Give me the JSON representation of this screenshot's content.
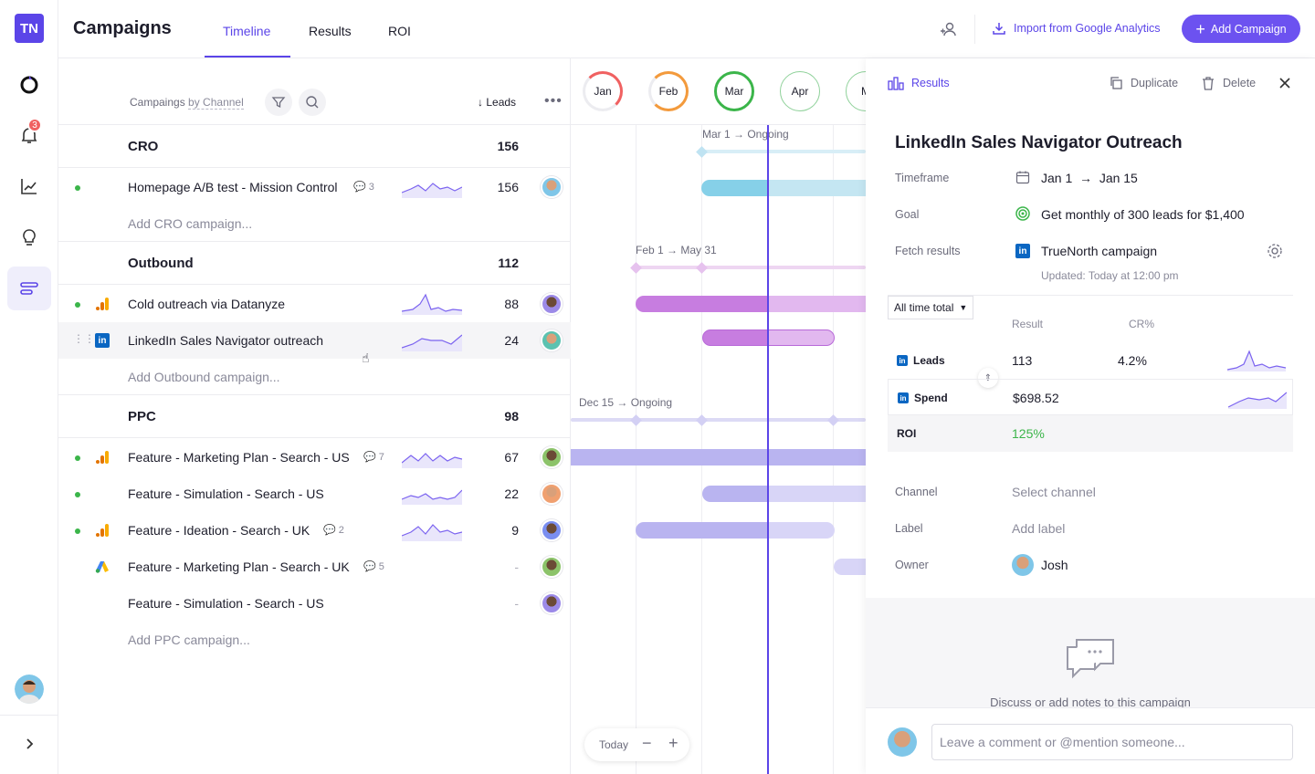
{
  "app": {
    "logo": "TN",
    "notifications_count": "3"
  },
  "header": {
    "title": "Campaigns",
    "tabs": [
      {
        "label": "Timeline"
      },
      {
        "label": "Results"
      },
      {
        "label": "ROI"
      }
    ],
    "import_label": "Import from Google Analytics",
    "add_label": "Add Campaign"
  },
  "toolbar": {
    "campaigns_label": "Campaings",
    "by_label": "by Channel",
    "sort_label": "Leads"
  },
  "groups": [
    {
      "title": "CRO",
      "total": "156",
      "rows": [
        {
          "name": "Homepage A/B test - Mission Control",
          "comments": "3",
          "value": "156",
          "channel": "none"
        }
      ],
      "add": "Add CRO campaign..."
    },
    {
      "title": "Outbound",
      "total": "112",
      "rows": [
        {
          "name": "Cold outreach via Datanyze",
          "comments": "",
          "value": "88",
          "channel": "analytics"
        },
        {
          "name": "LinkedIn Sales Navigator outreach",
          "comments": "",
          "value": "24",
          "channel": "linkedin"
        }
      ],
      "add": "Add Outbound campaign..."
    },
    {
      "title": "PPC",
      "total": "98",
      "rows": [
        {
          "name": "Feature - Marketing Plan - Search - US",
          "comments": "7",
          "value": "67",
          "channel": "analytics"
        },
        {
          "name": "Feature - Simulation - Search - US",
          "comments": "",
          "value": "22",
          "channel": "none"
        },
        {
          "name": "Feature - Ideation - Search - UK",
          "comments": "2",
          "value": "9",
          "channel": "analytics"
        },
        {
          "name": "Feature - Marketing Plan - Search - UK",
          "comments": "5",
          "value": "-",
          "channel": "google-ads"
        },
        {
          "name": "Feature - Simulation - Search - US",
          "comments": "",
          "value": "-",
          "channel": "none"
        }
      ],
      "add": "Add PPC campaign..."
    }
  ],
  "timeline": {
    "months": [
      "Jan",
      "Feb",
      "Mar",
      "Apr",
      "M"
    ],
    "labels": {
      "cro": "Mar 1 → Ongoing",
      "outbound": "Feb 1 → May 31",
      "ppc": "Dec 15 → Ongoing"
    },
    "zoom_label": "Today"
  },
  "panel": {
    "results_label": "Results",
    "duplicate_label": "Duplicate",
    "delete_label": "Delete",
    "title": "LinkedIn Sales Navigator Outreach",
    "timeframe_label": "Timeframe",
    "timeframe_start": "Jan 1",
    "timeframe_end": "Jan 15",
    "goal_label": "Goal",
    "goal_value": "Get monthly of 300 leads for $1,400",
    "fetch_label": "Fetch results",
    "fetch_value": "TrueNorth campaign",
    "updated": "Updated: Today at 12:00 pm",
    "range_select": "All time total",
    "col_result": "Result",
    "col_cr": "CR%",
    "metrics": [
      {
        "label": "Leads",
        "result": "113",
        "cr": "4.2%"
      },
      {
        "label": "Spend",
        "result": "$698.52",
        "cr": ""
      },
      {
        "label": "ROI",
        "result": "125%",
        "cr": ""
      }
    ],
    "channel_label": "Channel",
    "channel_value": "Select channel",
    "label_label": "Label",
    "label_value": "Add label",
    "owner_label": "Owner",
    "owner_value": "Josh",
    "discuss_text": "Discuss or add notes to this campaign",
    "comment_placeholder": "Leave a comment or @mention someone..."
  },
  "colors": {
    "accent": "#5b45e8",
    "green": "#3bb54a",
    "linkedin": "#0a66c2"
  }
}
